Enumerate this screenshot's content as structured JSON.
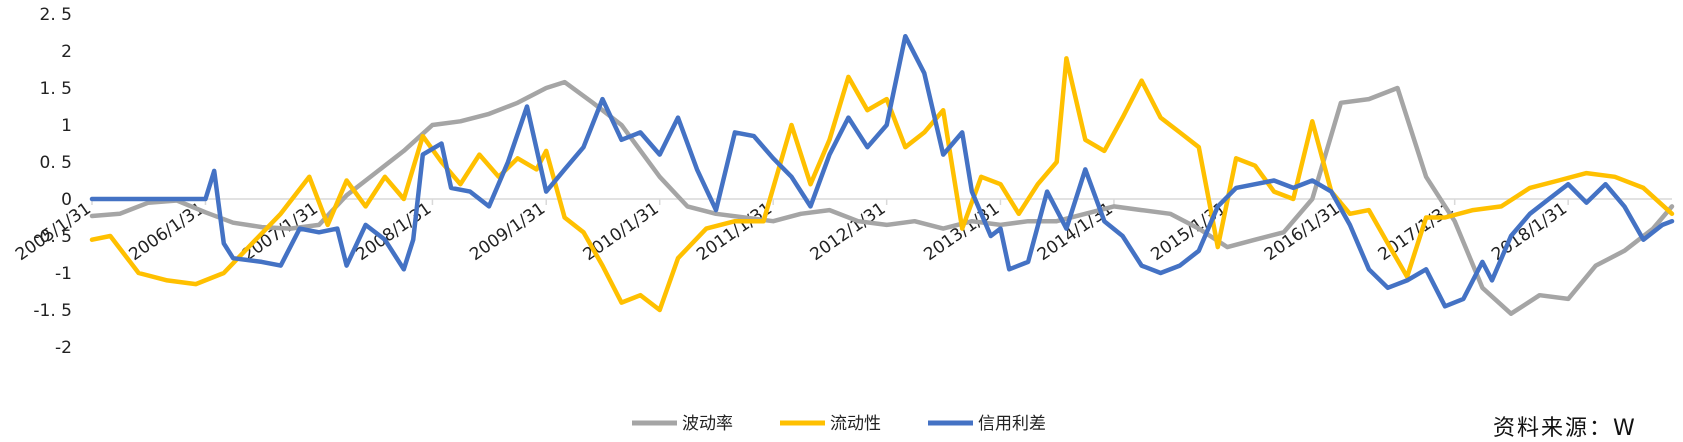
{
  "source_note": "资料来源：W",
  "chart_data": {
    "type": "line",
    "title": "",
    "xlabel": "",
    "ylabel": "",
    "ylim": [
      -2,
      2.5
    ],
    "yticks": [
      2.5,
      2,
      1.5,
      1,
      0.5,
      0,
      -0.5,
      -1,
      -1.5,
      -2
    ],
    "ytick_labels": [
      "2. 5",
      "2",
      "1. 5",
      "1",
      "0. 5",
      "0",
      "-0. 5",
      "-1",
      "-1. 5",
      "-2"
    ],
    "xlim": [
      "2005/1/31",
      "2018/12/31"
    ],
    "xticks": [
      "2005/1/31",
      "2006/1/31",
      "2007/1/31",
      "2008/1/31",
      "2009/1/31",
      "2010/1/31",
      "2011/1/31",
      "2012/1/31",
      "2013/1/31",
      "2014/1/31",
      "2015/1/31",
      "2016/1/31",
      "2017/1/31",
      "2018/1/31"
    ],
    "grid": false,
    "legend_position": "bottom",
    "series": [
      {
        "name": "波动率",
        "color": "#A5A5A5",
        "points": [
          [
            "2005/1/31",
            -0.23
          ],
          [
            "2005/4/30",
            -0.2
          ],
          [
            "2005/7/31",
            -0.05
          ],
          [
            "2005/10/31",
            -0.02
          ],
          [
            "2006/1/31",
            -0.18
          ],
          [
            "2006/4/30",
            -0.32
          ],
          [
            "2006/7/31",
            -0.38
          ],
          [
            "2006/10/31",
            -0.4
          ],
          [
            "2007/1/31",
            -0.35
          ],
          [
            "2007/4/30",
            0.05
          ],
          [
            "2007/7/31",
            0.35
          ],
          [
            "2007/10/31",
            0.65
          ],
          [
            "2008/1/31",
            1.0
          ],
          [
            "2008/4/30",
            1.05
          ],
          [
            "2008/7/31",
            1.15
          ],
          [
            "2008/10/31",
            1.3
          ],
          [
            "2009/1/31",
            1.5
          ],
          [
            "2009/3/31",
            1.58
          ],
          [
            "2009/6/30",
            1.3
          ],
          [
            "2009/9/30",
            1.0
          ],
          [
            "2010/1/31",
            0.3
          ],
          [
            "2010/4/30",
            -0.1
          ],
          [
            "2010/7/31",
            -0.2
          ],
          [
            "2010/10/31",
            -0.25
          ],
          [
            "2011/1/31",
            -0.3
          ],
          [
            "2011/4/30",
            -0.2
          ],
          [
            "2011/7/31",
            -0.15
          ],
          [
            "2011/10/31",
            -0.3
          ],
          [
            "2012/1/31",
            -0.35
          ],
          [
            "2012/4/30",
            -0.3
          ],
          [
            "2012/7/31",
            -0.4
          ],
          [
            "2012/10/31",
            -0.3
          ],
          [
            "2013/1/31",
            -0.35
          ],
          [
            "2013/4/30",
            -0.3
          ],
          [
            "2013/7/31",
            -0.3
          ],
          [
            "2013/10/31",
            -0.2
          ],
          [
            "2014/1/31",
            -0.1
          ],
          [
            "2014/4/30",
            -0.15
          ],
          [
            "2014/7/31",
            -0.2
          ],
          [
            "2014/10/31",
            -0.4
          ],
          [
            "2015/1/31",
            -0.65
          ],
          [
            "2015/4/30",
            -0.55
          ],
          [
            "2015/7/31",
            -0.45
          ],
          [
            "2015/10/31",
            0.0
          ],
          [
            "2016/1/31",
            1.3
          ],
          [
            "2016/4/30",
            1.35
          ],
          [
            "2016/7/31",
            1.5
          ],
          [
            "2016/10/31",
            0.3
          ],
          [
            "2017/1/31",
            -0.3
          ],
          [
            "2017/4/30",
            -1.2
          ],
          [
            "2017/7/31",
            -1.55
          ],
          [
            "2017/10/31",
            -1.3
          ],
          [
            "2018/1/31",
            -1.35
          ],
          [
            "2018/4/30",
            -0.9
          ],
          [
            "2018/7/31",
            -0.7
          ],
          [
            "2018/10/31",
            -0.4
          ],
          [
            "2018/12/31",
            -0.1
          ]
        ]
      },
      {
        "name": "流动性",
        "color": "#FFC000",
        "points": [
          [
            "2005/1/31",
            -0.55
          ],
          [
            "2005/3/31",
            -0.5
          ],
          [
            "2005/6/30",
            -1.0
          ],
          [
            "2005/9/30",
            -1.1
          ],
          [
            "2005/12/31",
            -1.15
          ],
          [
            "2006/3/31",
            -1.0
          ],
          [
            "2006/6/30",
            -0.6
          ],
          [
            "2006/9/30",
            -0.2
          ],
          [
            "2006/12/31",
            0.3
          ],
          [
            "2007/2/28",
            -0.35
          ],
          [
            "2007/4/30",
            0.25
          ],
          [
            "2007/6/30",
            -0.1
          ],
          [
            "2007/8/31",
            0.3
          ],
          [
            "2007/10/31",
            0.0
          ],
          [
            "2007/12/31",
            0.85
          ],
          [
            "2008/2/29",
            0.5
          ],
          [
            "2008/4/30",
            0.2
          ],
          [
            "2008/6/30",
            0.6
          ],
          [
            "2008/8/31",
            0.3
          ],
          [
            "2008/10/31",
            0.55
          ],
          [
            "2008/12/31",
            0.4
          ],
          [
            "2009/1/31",
            0.65
          ],
          [
            "2009/3/31",
            -0.25
          ],
          [
            "2009/5/31",
            -0.45
          ],
          [
            "2009/7/31",
            -0.9
          ],
          [
            "2009/9/30",
            -1.4
          ],
          [
            "2009/11/30",
            -1.3
          ],
          [
            "2010/1/31",
            -1.5
          ],
          [
            "2010/3/31",
            -0.8
          ],
          [
            "2010/6/30",
            -0.4
          ],
          [
            "2010/9/30",
            -0.3
          ],
          [
            "2010/12/31",
            -0.3
          ],
          [
            "2011/3/31",
            1.0
          ],
          [
            "2011/5/31",
            0.2
          ],
          [
            "2011/7/31",
            0.8
          ],
          [
            "2011/9/30",
            1.65
          ],
          [
            "2011/11/30",
            1.2
          ],
          [
            "2012/1/31",
            1.35
          ],
          [
            "2012/3/31",
            0.7
          ],
          [
            "2012/5/31",
            0.9
          ],
          [
            "2012/7/31",
            1.2
          ],
          [
            "2012/9/30",
            -0.4
          ],
          [
            "2012/11/30",
            0.3
          ],
          [
            "2013/1/31",
            0.2
          ],
          [
            "2013/3/31",
            -0.2
          ],
          [
            "2013/5/31",
            0.2
          ],
          [
            "2013/7/31",
            0.5
          ],
          [
            "2013/8/31",
            1.9
          ],
          [
            "2013/10/31",
            0.8
          ],
          [
            "2013/12/31",
            0.65
          ],
          [
            "2014/2/28",
            1.1
          ],
          [
            "2014/4/30",
            1.6
          ],
          [
            "2014/6/30",
            1.1
          ],
          [
            "2014/8/31",
            0.9
          ],
          [
            "2014/10/31",
            0.7
          ],
          [
            "2014/12/31",
            -0.65
          ],
          [
            "2015/2/28",
            0.55
          ],
          [
            "2015/4/30",
            0.45
          ],
          [
            "2015/6/30",
            0.1
          ],
          [
            "2015/8/31",
            0.0
          ],
          [
            "2015/10/31",
            1.05
          ],
          [
            "2015/12/31",
            0.1
          ],
          [
            "2016/2/29",
            -0.2
          ],
          [
            "2016/4/30",
            -0.15
          ],
          [
            "2016/6/30",
            -0.6
          ],
          [
            "2016/8/31",
            -1.05
          ],
          [
            "2016/10/31",
            -0.25
          ],
          [
            "2016/12/31",
            -0.25
          ],
          [
            "2017/3/31",
            -0.15
          ],
          [
            "2017/6/30",
            -0.1
          ],
          [
            "2017/9/30",
            0.15
          ],
          [
            "2017/12/31",
            0.25
          ],
          [
            "2018/3/31",
            0.35
          ],
          [
            "2018/6/30",
            0.3
          ],
          [
            "2018/9/30",
            0.15
          ],
          [
            "2018/12/31",
            -0.2
          ]
        ]
      },
      {
        "name": "信用利差",
        "color": "#4472C4",
        "points": [
          [
            "2005/1/31",
            0
          ],
          [
            "2006/1/31",
            0
          ],
          [
            "2006/2/28",
            0.38
          ],
          [
            "2006/3/31",
            -0.6
          ],
          [
            "2006/4/30",
            -0.8
          ],
          [
            "2006/7/31",
            -0.85
          ],
          [
            "2006/9/30",
            -0.9
          ],
          [
            "2006/11/30",
            -0.4
          ],
          [
            "2007/1/31",
            -0.45
          ],
          [
            "2007/3/31",
            -0.4
          ],
          [
            "2007/4/30",
            -0.9
          ],
          [
            "2007/6/30",
            -0.35
          ],
          [
            "2007/8/31",
            -0.55
          ],
          [
            "2007/10/31",
            -0.95
          ],
          [
            "2007/11/30",
            -0.55
          ],
          [
            "2007/12/31",
            0.6
          ],
          [
            "2008/2/29",
            0.75
          ],
          [
            "2008/3/31",
            0.15
          ],
          [
            "2008/5/31",
            0.1
          ],
          [
            "2008/7/31",
            -0.1
          ],
          [
            "2008/9/30",
            0.5
          ],
          [
            "2008/11/30",
            1.25
          ],
          [
            "2009/1/31",
            0.1
          ],
          [
            "2009/3/31",
            0.4
          ],
          [
            "2009/5/31",
            0.7
          ],
          [
            "2009/7/31",
            1.35
          ],
          [
            "2009/9/30",
            0.8
          ],
          [
            "2009/11/30",
            0.9
          ],
          [
            "2010/1/31",
            0.6
          ],
          [
            "2010/3/31",
            1.1
          ],
          [
            "2010/5/31",
            0.4
          ],
          [
            "2010/7/31",
            -0.15
          ],
          [
            "2010/9/30",
            0.9
          ],
          [
            "2010/11/30",
            0.85
          ],
          [
            "2011/1/31",
            0.55
          ],
          [
            "2011/3/31",
            0.3
          ],
          [
            "2011/5/31",
            -0.1
          ],
          [
            "2011/7/31",
            0.6
          ],
          [
            "2011/9/30",
            1.1
          ],
          [
            "2011/11/30",
            0.7
          ],
          [
            "2012/1/31",
            1.0
          ],
          [
            "2012/3/31",
            2.2
          ],
          [
            "2012/5/31",
            1.7
          ],
          [
            "2012/7/31",
            0.6
          ],
          [
            "2012/9/30",
            0.9
          ],
          [
            "2012/10/31",
            0.1
          ],
          [
            "2012/12/31",
            -0.5
          ],
          [
            "2013/1/31",
            -0.4
          ],
          [
            "2013/2/28",
            -0.95
          ],
          [
            "2013/4/30",
            -0.85
          ],
          [
            "2013/6/30",
            0.1
          ],
          [
            "2013/8/31",
            -0.4
          ],
          [
            "2013/10/31",
            0.4
          ],
          [
            "2013/12/31",
            -0.3
          ],
          [
            "2014/2/28",
            -0.5
          ],
          [
            "2014/4/30",
            -0.9
          ],
          [
            "2014/6/30",
            -1.0
          ],
          [
            "2014/8/31",
            -0.9
          ],
          [
            "2014/10/31",
            -0.7
          ],
          [
            "2014/12/31",
            -0.1
          ],
          [
            "2015/2/28",
            0.15
          ],
          [
            "2015/4/30",
            0.2
          ],
          [
            "2015/6/30",
            0.25
          ],
          [
            "2015/8/31",
            0.15
          ],
          [
            "2015/10/31",
            0.25
          ],
          [
            "2015/12/31",
            0.1
          ],
          [
            "2016/2/29",
            -0.35
          ],
          [
            "2016/4/30",
            -0.95
          ],
          [
            "2016/6/30",
            -1.2
          ],
          [
            "2016/8/31",
            -1.1
          ],
          [
            "2016/10/31",
            -0.95
          ],
          [
            "2016/12/31",
            -1.45
          ],
          [
            "2017/2/28",
            -1.35
          ],
          [
            "2017/4/30",
            -0.85
          ],
          [
            "2017/5/31",
            -1.1
          ],
          [
            "2017/7/31",
            -0.5
          ],
          [
            "2017/9/30",
            -0.2
          ],
          [
            "2017/11/30",
            0.0
          ],
          [
            "2018/1/31",
            0.2
          ],
          [
            "2018/3/31",
            -0.05
          ],
          [
            "2018/5/31",
            0.2
          ],
          [
            "2018/7/31",
            -0.1
          ],
          [
            "2018/9/30",
            -0.55
          ],
          [
            "2018/11/30",
            -0.35
          ],
          [
            "2018/12/31",
            -0.3
          ]
        ]
      }
    ]
  }
}
